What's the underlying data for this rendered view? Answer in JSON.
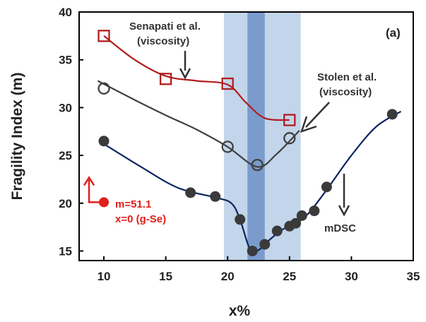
{
  "chart_data": {
    "type": "scatter",
    "panel_label": "(a)",
    "xlabel": "x%",
    "ylabel": "Fragility Index (m)",
    "xlim": [
      8,
      35
    ],
    "ylim": [
      14,
      40
    ],
    "xticks": [
      10,
      15,
      20,
      25,
      30,
      35
    ],
    "yticks": [
      15,
      20,
      25,
      30,
      35,
      40
    ],
    "bands": [
      {
        "x0": 19.7,
        "x1": 25.9,
        "color": "#c2d5ea"
      },
      {
        "x0": 21.6,
        "x1": 23.0,
        "color": "#7a9ccd"
      }
    ],
    "series": [
      {
        "marker": "open-square",
        "color": "#b01e1e",
        "points": [
          [
            10,
            37.5
          ],
          [
            15,
            33.0
          ],
          [
            20,
            32.5
          ],
          [
            25,
            28.7
          ]
        ],
        "curve": [
          [
            10,
            37.5
          ],
          [
            12.5,
            35.0
          ],
          [
            15,
            33.3
          ],
          [
            17.5,
            32.8
          ],
          [
            20,
            32.4
          ],
          [
            21.5,
            30.5
          ],
          [
            23,
            28.9
          ],
          [
            25,
            28.7
          ]
        ]
      },
      {
        "marker": "open-circle",
        "color": "#404040",
        "points": [
          [
            10,
            32.0
          ],
          [
            20,
            25.9
          ],
          [
            22.4,
            24.0
          ],
          [
            25,
            26.8
          ]
        ],
        "curve": [
          [
            9.5,
            32.8
          ],
          [
            12.5,
            30.8
          ],
          [
            15,
            29.2
          ],
          [
            17.5,
            27.7
          ],
          [
            20,
            25.9
          ],
          [
            22.4,
            23.8
          ],
          [
            24,
            25.2
          ],
          [
            25.8,
            27.6
          ]
        ]
      },
      {
        "marker": "filled-circle",
        "color": "#3a3a3a",
        "line_color": "#0a2560",
        "points": [
          [
            10,
            26.5
          ],
          [
            17,
            21.1
          ],
          [
            19,
            20.7
          ],
          [
            21,
            18.3
          ],
          [
            22,
            15.0
          ],
          [
            23,
            15.7
          ],
          [
            24,
            17.1
          ],
          [
            25,
            17.6
          ],
          [
            25.5,
            17.9
          ],
          [
            26,
            18.7
          ],
          [
            27,
            19.2
          ],
          [
            28,
            21.7
          ],
          [
            33.3,
            29.3
          ]
        ],
        "curve": [
          [
            10,
            26.2
          ],
          [
            13,
            23.8
          ],
          [
            16,
            21.6
          ],
          [
            19,
            20.6
          ],
          [
            20.3,
            20.0
          ],
          [
            21,
            18.3
          ],
          [
            21.8,
            15.2
          ],
          [
            22.5,
            15.1
          ],
          [
            23.5,
            16.3
          ],
          [
            24.5,
            17.3
          ],
          [
            25.5,
            17.9
          ],
          [
            26.5,
            18.9
          ],
          [
            28,
            21.4
          ],
          [
            30,
            25.0
          ],
          [
            32,
            28.0
          ],
          [
            34,
            29.6
          ]
        ]
      }
    ],
    "special_point": {
      "x": 10,
      "y": 20.1,
      "color": "#e0201b"
    },
    "annotations": {
      "senapati": [
        "Senapati et al.",
        "(viscosity)"
      ],
      "stolen": [
        "Stolen et al.",
        "(viscosity)"
      ],
      "mdsc": "mDSC",
      "gse": [
        "m=51.1",
        "x=0 (g-Se)"
      ]
    }
  }
}
